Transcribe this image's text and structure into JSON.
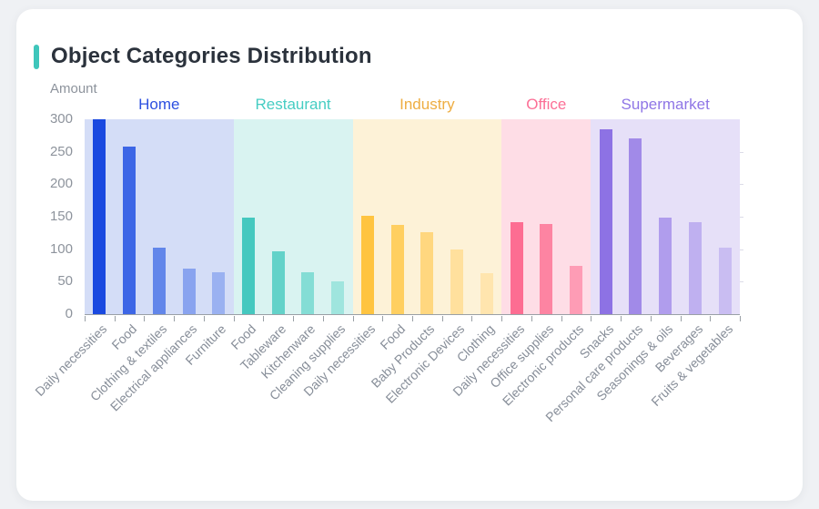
{
  "page": {
    "background_color": "#eff1f4"
  },
  "card": {
    "title": "Object Categories Distribution",
    "accent_color": "#3ec6bb"
  },
  "chart_data": {
    "type": "bar",
    "title": "Object Categories Distribution",
    "ylabel": "Amount",
    "xlabel": "",
    "ylim": [
      0,
      300
    ],
    "yticks": [
      0,
      50,
      100,
      150,
      200,
      250,
      300
    ],
    "grid": false,
    "legend_position": "group headers above plot bands",
    "axis_color": "#9aa0a6",
    "tick_label_color": "#8d939c",
    "groups": [
      {
        "name": "Home",
        "label_color": "#2d50e0",
        "band_color": "#d4ddf7",
        "bar_colors": [
          "#1a49e0",
          "#3d66e6",
          "#6286ea",
          "#89a3ef",
          "#9ab1f1"
        ],
        "categories": [
          "Daily necessities",
          "Food",
          "Clothing & textiles",
          "Electrical appliances",
          "Furniture"
        ],
        "values": [
          300,
          258,
          102,
          70,
          64
        ]
      },
      {
        "name": "Restaurant",
        "label_color": "#46cdc3",
        "band_color": "#d9f3f1",
        "bar_colors": [
          "#45c8bf",
          "#63d2c9",
          "#84ddd5",
          "#9fe5de"
        ],
        "categories": [
          "Food",
          "Tableware",
          "Kitchenware",
          "Cleaning supplies"
        ],
        "values": [
          149,
          97,
          65,
          51
        ]
      },
      {
        "name": "Industry",
        "label_color": "#eead42",
        "band_color": "#fdf2d7",
        "bar_colors": [
          "#ffc440",
          "#ffcf60",
          "#ffd77f",
          "#ffe09d",
          "#ffe5ae"
        ],
        "categories": [
          "Daily necessities",
          "Food",
          "Baby Products",
          "Electronic Devices",
          "Clothing"
        ],
        "values": [
          151,
          138,
          126,
          100,
          63
        ]
      },
      {
        "name": "Office",
        "label_color": "#fc6f96",
        "band_color": "#fedde6",
        "bar_colors": [
          "#fd6d92",
          "#fd84a2",
          "#fe9cb5"
        ],
        "categories": [
          "Daily necessities",
          "Office supplies",
          "Electronic products"
        ],
        "values": [
          142,
          139,
          75
        ]
      },
      {
        "name": "Supermarket",
        "label_color": "#8f76e6",
        "band_color": "#e6e0f8",
        "bar_colors": [
          "#8d72e4",
          "#a18ae8",
          "#b09ded",
          "#bfb0f0",
          "#c9bdf2"
        ],
        "categories": [
          "Snacks",
          "Personal care products",
          "Seasonings & oils",
          "Beverages",
          "Fruits & vegetables"
        ],
        "values": [
          285,
          271,
          148,
          141,
          102
        ]
      }
    ]
  }
}
